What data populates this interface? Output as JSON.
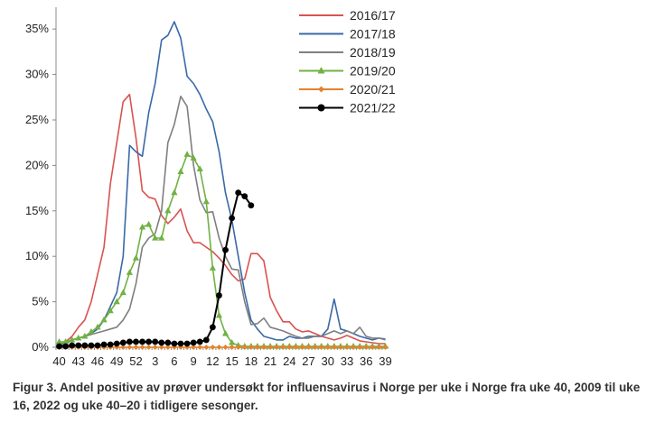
{
  "caption": "Figur 3. Andel positive av prøver undersøkt for influensavirus i Norge per uke i Norge fra uke 40, 2009 til uke 16, 2022 og uke 40–20 i tidligere sesonger.",
  "chart_data": {
    "type": "line",
    "title": "",
    "xlabel": "",
    "ylabel": "",
    "ylim": [
      0,
      0.37
    ],
    "y_ticks": [
      "0%",
      "5%",
      "10%",
      "15%",
      "20%",
      "25%",
      "30%",
      "35%"
    ],
    "x_tick_labels": [
      "40",
      "43",
      "46",
      "49",
      "52",
      "3",
      "6",
      "9",
      "12",
      "15",
      "18",
      "21",
      "24",
      "27",
      "30",
      "33",
      "36",
      "39"
    ],
    "x_weeks": [
      40,
      41,
      42,
      43,
      44,
      45,
      46,
      47,
      48,
      49,
      50,
      51,
      52,
      1,
      2,
      3,
      4,
      5,
      6,
      7,
      8,
      9,
      10,
      11,
      12,
      13,
      14,
      15,
      16,
      17,
      18,
      19,
      20,
      21,
      22,
      23,
      24,
      25,
      26,
      27,
      28,
      29,
      30,
      31,
      32,
      33,
      34,
      35,
      36,
      37,
      38,
      39
    ],
    "legend_position": "top-right",
    "grid": false,
    "series": [
      {
        "name": "2016/17",
        "color": "#d9534f",
        "marker": "none",
        "values": [
          0.003,
          0.006,
          0.012,
          0.022,
          0.03,
          0.05,
          0.08,
          0.11,
          0.18,
          0.225,
          0.27,
          0.278,
          0.23,
          0.172,
          0.165,
          0.163,
          0.145,
          0.136,
          0.143,
          0.152,
          0.128,
          0.115,
          0.115,
          0.11,
          0.105,
          0.098,
          0.09,
          0.08,
          0.073,
          0.075,
          0.103,
          0.103,
          0.095,
          0.055,
          0.04,
          0.028,
          0.028,
          0.02,
          0.017,
          0.018,
          0.015,
          0.012,
          0.01,
          0.008,
          0.01,
          0.013,
          0.01,
          0.007,
          0.006,
          0.005,
          0.004,
          0.004
        ]
      },
      {
        "name": "2017/18",
        "color": "#3a69a8",
        "marker": "none",
        "values": [
          0.002,
          0.004,
          0.008,
          0.01,
          0.012,
          0.015,
          0.02,
          0.03,
          0.045,
          0.06,
          0.1,
          0.222,
          0.215,
          0.21,
          0.258,
          0.29,
          0.338,
          0.343,
          0.358,
          0.34,
          0.298,
          0.29,
          0.278,
          0.262,
          0.248,
          0.215,
          0.17,
          0.14,
          0.1,
          0.06,
          0.03,
          0.02,
          0.012,
          0.01,
          0.008,
          0.008,
          0.012,
          0.01,
          0.01,
          0.012,
          0.012,
          0.012,
          0.02,
          0.053,
          0.02,
          0.018,
          0.015,
          0.012,
          0.01,
          0.008,
          0.01,
          0.009
        ]
      },
      {
        "name": "2018/19",
        "color": "#7f7f7f",
        "marker": "none",
        "values": [
          0.003,
          0.005,
          0.008,
          0.01,
          0.012,
          0.014,
          0.016,
          0.018,
          0.02,
          0.022,
          0.03,
          0.042,
          0.07,
          0.11,
          0.12,
          0.125,
          0.15,
          0.225,
          0.245,
          0.276,
          0.265,
          0.2,
          0.162,
          0.148,
          0.149,
          0.12,
          0.1,
          0.086,
          0.085,
          0.05,
          0.025,
          0.026,
          0.032,
          0.022,
          0.02,
          0.018,
          0.015,
          0.012,
          0.01,
          0.01,
          0.012,
          0.012,
          0.015,
          0.018,
          0.015,
          0.018,
          0.015,
          0.022,
          0.012,
          0.01,
          0.01,
          0.008
        ]
      },
      {
        "name": "2019/20",
        "color": "#70b244",
        "marker": "triangle",
        "values": [
          0.006,
          0.006,
          0.008,
          0.01,
          0.012,
          0.017,
          0.022,
          0.03,
          0.04,
          0.05,
          0.06,
          0.082,
          0.098,
          0.132,
          0.135,
          0.12,
          0.12,
          0.15,
          0.17,
          0.193,
          0.212,
          0.208,
          0.196,
          0.16,
          0.087,
          0.035,
          0.015,
          0.005,
          0.002,
          0.001,
          0.001,
          0.001,
          0.001,
          0.001,
          0.001,
          0.001,
          0.001,
          0.001,
          0.001,
          0.001,
          0.001,
          0.001,
          0.001,
          0.001,
          0.001,
          0.001,
          0.001,
          0.001,
          0.001,
          0.001,
          0.001,
          0.001
        ]
      },
      {
        "name": "2020/21",
        "color": "#e2832e",
        "marker": "diamond",
        "values": [
          0,
          0,
          0,
          0,
          0,
          0,
          0,
          0,
          0,
          0,
          0,
          0,
          0,
          0,
          0,
          0,
          0,
          0,
          0,
          0,
          0,
          0,
          0,
          0,
          0,
          0,
          0,
          0,
          0,
          0,
          0,
          0,
          0,
          0,
          0,
          0,
          0,
          0,
          0,
          0,
          0,
          0,
          0,
          0,
          0,
          0,
          0,
          0,
          0,
          0,
          0,
          0
        ]
      },
      {
        "name": "2021/22",
        "color": "#000000",
        "marker": "circle",
        "values": [
          0.001,
          0.001,
          0.002,
          0.002,
          0.002,
          0.002,
          0.002,
          0.003,
          0.003,
          0.004,
          0.005,
          0.006,
          0.006,
          0.006,
          0.006,
          0.006,
          0.005,
          0.005,
          0.004,
          0.004,
          0.004,
          0.005,
          0.006,
          0.008,
          0.022,
          0.057,
          0.107,
          0.142,
          0.17,
          0.166,
          0.156
        ]
      }
    ]
  }
}
